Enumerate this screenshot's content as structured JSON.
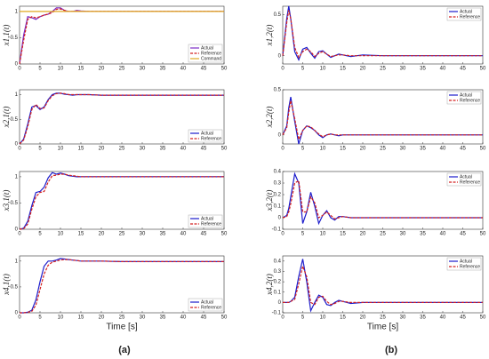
{
  "captions": [
    "(a)",
    "(b)"
  ],
  "chart_data": [
    {
      "type": "line",
      "ylabel": "x1,1(t)",
      "legend": "lower right",
      "x": [
        0,
        1,
        2,
        3,
        4,
        5,
        6,
        7,
        8,
        9,
        10,
        11,
        12,
        13,
        14,
        15,
        17,
        20,
        25,
        30,
        40,
        50
      ],
      "xlim": [
        0,
        50
      ],
      "xticks": [
        0,
        5,
        10,
        15,
        20,
        25,
        30,
        35,
        40,
        45,
        50
      ],
      "ylim": [
        0,
        1.1
      ],
      "yticks": [
        0,
        0.5,
        1
      ],
      "series": [
        {
          "name": "Actual",
          "color": "#7a2bc4",
          "dash": false,
          "values": [
            0,
            0.55,
            0.9,
            0.88,
            0.85,
            0.9,
            0.93,
            0.95,
            1.0,
            1.07,
            1.07,
            1.02,
            1.0,
            1.0,
            1.02,
            1.01,
            1.0,
            1.0,
            1.0,
            1.0,
            1.0,
            1.0
          ]
        },
        {
          "name": "Reference",
          "color": "#d42020",
          "dash": true,
          "values": [
            0,
            0.45,
            0.85,
            0.9,
            0.88,
            0.9,
            0.93,
            0.95,
            0.98,
            1.04,
            1.05,
            1.02,
            1.0,
            1.0,
            1.01,
            1.0,
            1.0,
            1.0,
            1.0,
            1.0,
            1.0,
            1.0
          ]
        },
        {
          "name": "Command",
          "color": "#e0a820",
          "dash": false,
          "values": [
            1,
            1,
            1,
            1,
            1,
            1,
            1,
            1,
            1,
            1,
            1,
            1,
            1,
            1,
            1,
            1,
            1,
            1,
            1,
            1,
            1,
            1
          ]
        }
      ]
    },
    {
      "type": "line",
      "ylabel": "x2,1(t)",
      "legend": "lower right",
      "x": [
        0,
        1,
        2,
        3,
        4,
        5,
        6,
        7,
        8,
        9,
        10,
        11,
        12,
        13,
        14,
        15,
        17,
        20,
        25,
        30,
        40,
        50
      ],
      "xlim": [
        0,
        50
      ],
      "xticks": [
        0,
        5,
        10,
        15,
        20,
        25,
        30,
        35,
        40,
        45,
        50
      ],
      "ylim": [
        0,
        1.1
      ],
      "yticks": [
        0,
        0.5,
        1
      ],
      "series": [
        {
          "name": "Actual",
          "color": "#1c1ccc",
          "dash": false,
          "values": [
            0,
            0.1,
            0.4,
            0.75,
            0.78,
            0.7,
            0.75,
            0.9,
            1.0,
            1.03,
            1.03,
            1.01,
            1.0,
            0.99,
            1.0,
            1.0,
            1.0,
            0.99,
            0.99,
            0.99,
            0.99,
            0.99
          ]
        },
        {
          "name": "Reference",
          "color": "#d42020",
          "dash": true,
          "values": [
            0,
            0.08,
            0.35,
            0.7,
            0.8,
            0.72,
            0.73,
            0.88,
            0.98,
            1.02,
            1.03,
            1.02,
            1.0,
            1.0,
            1.0,
            1.0,
            1.0,
            0.99,
            0.99,
            0.99,
            0.99,
            0.99
          ]
        }
      ]
    },
    {
      "type": "line",
      "ylabel": "x3,1(t)",
      "legend": "lower right",
      "x": [
        0,
        1,
        2,
        3,
        4,
        5,
        6,
        7,
        8,
        9,
        10,
        11,
        12,
        13,
        14,
        15,
        17,
        20,
        25,
        30,
        40,
        50
      ],
      "xlim": [
        0,
        50
      ],
      "xticks": [
        0,
        5,
        10,
        15,
        20,
        25,
        30,
        35,
        40,
        45,
        50
      ],
      "ylim": [
        0,
        1.1
      ],
      "yticks": [
        0,
        0.5,
        1
      ],
      "series": [
        {
          "name": "Actual",
          "color": "#1c1ccc",
          "dash": false,
          "values": [
            0,
            0.02,
            0.15,
            0.45,
            0.7,
            0.72,
            0.8,
            0.98,
            1.08,
            1.05,
            1.07,
            1.05,
            1.02,
            1.01,
            1.0,
            1.0,
            1.0,
            1.0,
            1.0,
            1.0,
            1.0,
            1.0
          ]
        },
        {
          "name": "Reference",
          "color": "#d42020",
          "dash": true,
          "values": [
            0,
            0.01,
            0.1,
            0.38,
            0.62,
            0.7,
            0.72,
            0.9,
            1.02,
            1.03,
            1.05,
            1.05,
            1.03,
            1.02,
            1.01,
            1.0,
            1.0,
            1.0,
            1.0,
            1.0,
            1.0,
            1.0
          ]
        }
      ]
    },
    {
      "type": "line",
      "ylabel": "x4,1(t)",
      "xlabel": "Time [s]",
      "legend": "lower right",
      "x": [
        0,
        1,
        2,
        3,
        4,
        5,
        6,
        7,
        8,
        9,
        10,
        11,
        12,
        13,
        14,
        15,
        17,
        20,
        25,
        30,
        40,
        50
      ],
      "xlim": [
        0,
        50
      ],
      "xticks": [
        0,
        5,
        10,
        15,
        20,
        25,
        30,
        35,
        40,
        45,
        50
      ],
      "ylim": [
        0,
        1.1
      ],
      "yticks": [
        0,
        0.5,
        1
      ],
      "series": [
        {
          "name": "Actual",
          "color": "#1c1ccc",
          "dash": false,
          "values": [
            0,
            0,
            0.01,
            0.05,
            0.25,
            0.6,
            0.9,
            1.0,
            1.0,
            1.02,
            1.05,
            1.04,
            1.03,
            1.02,
            1.01,
            1.0,
            1.0,
            1.0,
            0.99,
            0.99,
            0.99,
            0.99
          ]
        },
        {
          "name": "Reference",
          "color": "#d42020",
          "dash": true,
          "values": [
            0,
            0,
            0.01,
            0.03,
            0.15,
            0.45,
            0.75,
            0.92,
            0.98,
            1.0,
            1.02,
            1.03,
            1.03,
            1.02,
            1.01,
            1.0,
            1.0,
            1.0,
            0.99,
            0.99,
            0.99,
            0.99
          ]
        }
      ]
    },
    {
      "type": "line",
      "ylabel": "x1,2(t)",
      "legend": "upper right",
      "x": [
        0,
        1,
        1.5,
        2,
        3,
        4,
        5,
        6,
        7,
        8,
        9,
        10,
        11,
        12,
        13,
        14,
        15,
        17,
        20,
        25,
        30,
        40,
        50
      ],
      "xlim": [
        0,
        50
      ],
      "xticks": [
        0,
        5,
        10,
        15,
        20,
        25,
        30,
        35,
        40,
        45,
        50
      ],
      "ylim": [
        -0.1,
        0.6
      ],
      "yticks": [
        0,
        0.5
      ],
      "series": [
        {
          "name": "Actual",
          "color": "#1c1ccc",
          "dash": false,
          "values": [
            0,
            0.45,
            0.6,
            0.45,
            0.05,
            -0.05,
            0.08,
            0.1,
            0.03,
            -0.03,
            0.05,
            0.06,
            0.02,
            -0.02,
            0,
            0.02,
            0.01,
            -0.01,
            0.01,
            0,
            0,
            0,
            0
          ]
        },
        {
          "name": "Reference",
          "color": "#d42020",
          "dash": true,
          "values": [
            0,
            0.4,
            0.55,
            0.45,
            0.1,
            -0.02,
            0.05,
            0.08,
            0.05,
            -0.01,
            0.03,
            0.05,
            0.02,
            -0.01,
            0,
            0.01,
            0.01,
            0,
            0,
            0,
            0,
            0,
            0
          ]
        }
      ]
    },
    {
      "type": "line",
      "ylabel": "x2,2(t)",
      "legend": "upper right",
      "x": [
        0,
        1,
        1.5,
        2,
        3,
        4,
        5,
        6,
        7,
        8,
        9,
        10,
        11,
        12,
        13,
        14,
        15,
        17,
        20,
        25,
        30,
        40,
        50
      ],
      "xlim": [
        0,
        50
      ],
      "xticks": [
        0,
        5,
        10,
        15,
        20,
        25,
        30,
        35,
        40,
        45,
        50
      ],
      "ylim": [
        -0.1,
        0.5
      ],
      "yticks": [
        0,
        0.5
      ],
      "series": [
        {
          "name": "Actual",
          "color": "#1c1ccc",
          "dash": false,
          "values": [
            0,
            0.1,
            0.3,
            0.42,
            0.15,
            -0.1,
            0.05,
            0.1,
            0.08,
            0.05,
            0,
            -0.03,
            0,
            0.01,
            0,
            -0.01,
            0,
            0,
            0,
            0,
            0,
            0,
            0
          ]
        },
        {
          "name": "Reference",
          "color": "#d42020",
          "dash": true,
          "values": [
            0,
            0.08,
            0.25,
            0.38,
            0.18,
            -0.05,
            0.05,
            0.1,
            0.09,
            0.05,
            0.01,
            -0.02,
            0,
            0.01,
            0,
            0,
            0,
            0,
            0,
            0,
            0,
            0,
            0
          ]
        }
      ]
    },
    {
      "type": "line",
      "ylabel": "x3,2(t)",
      "legend": "upper right",
      "x": [
        0,
        1,
        1.5,
        2,
        3,
        4,
        5,
        6,
        7,
        8,
        9,
        10,
        11,
        12,
        13,
        14,
        15,
        17,
        20,
        25,
        30,
        40,
        50
      ],
      "xlim": [
        0,
        50
      ],
      "xticks": [
        0,
        5,
        10,
        15,
        20,
        25,
        30,
        35,
        40,
        45,
        50
      ],
      "ylim": [
        -0.1,
        0.4
      ],
      "yticks": [
        -0.1,
        0,
        0.1,
        0.2,
        0.3,
        0.4
      ],
      "series": [
        {
          "name": "Actual",
          "color": "#1c1ccc",
          "dash": false,
          "values": [
            0,
            0.02,
            0.08,
            0.18,
            0.38,
            0.3,
            -0.05,
            0.05,
            0.22,
            0.1,
            -0.05,
            0.02,
            0.06,
            0,
            -0.02,
            0.01,
            0.01,
            0,
            0,
            0,
            0,
            0,
            0
          ]
        },
        {
          "name": "Reference",
          "color": "#d42020",
          "dash": true,
          "values": [
            0,
            0.01,
            0.05,
            0.12,
            0.3,
            0.32,
            0.05,
            0.05,
            0.18,
            0.13,
            0,
            0.02,
            0.05,
            0.02,
            -0.01,
            0,
            0.01,
            0,
            0,
            0,
            0,
            0,
            0
          ]
        }
      ]
    },
    {
      "type": "line",
      "ylabel": "x4,2(t)",
      "xlabel": "Time [s]",
      "legend": "upper right",
      "x": [
        0,
        1,
        1.5,
        2,
        3,
        4,
        5,
        6,
        7,
        8,
        9,
        10,
        11,
        12,
        13,
        14,
        15,
        17,
        20,
        25,
        30,
        40,
        50
      ],
      "xlim": [
        0,
        50
      ],
      "xticks": [
        0,
        5,
        10,
        15,
        20,
        25,
        30,
        35,
        40,
        45,
        50
      ],
      "ylim": [
        -0.1,
        0.45
      ],
      "yticks": [
        -0.1,
        0,
        0.1,
        0.2,
        0.3,
        0.4
      ],
      "series": [
        {
          "name": "Actual",
          "color": "#1c1ccc",
          "dash": false,
          "values": [
            0,
            0,
            0,
            0.01,
            0.05,
            0.25,
            0.42,
            0.2,
            -0.08,
            0,
            0.07,
            0.05,
            -0.02,
            -0.03,
            0,
            0.02,
            0.01,
            -0.01,
            0,
            0,
            0,
            0,
            0
          ]
        },
        {
          "name": "Reference",
          "color": "#d42020",
          "dash": true,
          "values": [
            0,
            0,
            0,
            0.01,
            0.03,
            0.18,
            0.35,
            0.25,
            0,
            -0.02,
            0.05,
            0.06,
            0.01,
            -0.02,
            -0.01,
            0.01,
            0.01,
            0,
            0,
            0,
            0,
            0,
            0
          ]
        }
      ]
    }
  ]
}
